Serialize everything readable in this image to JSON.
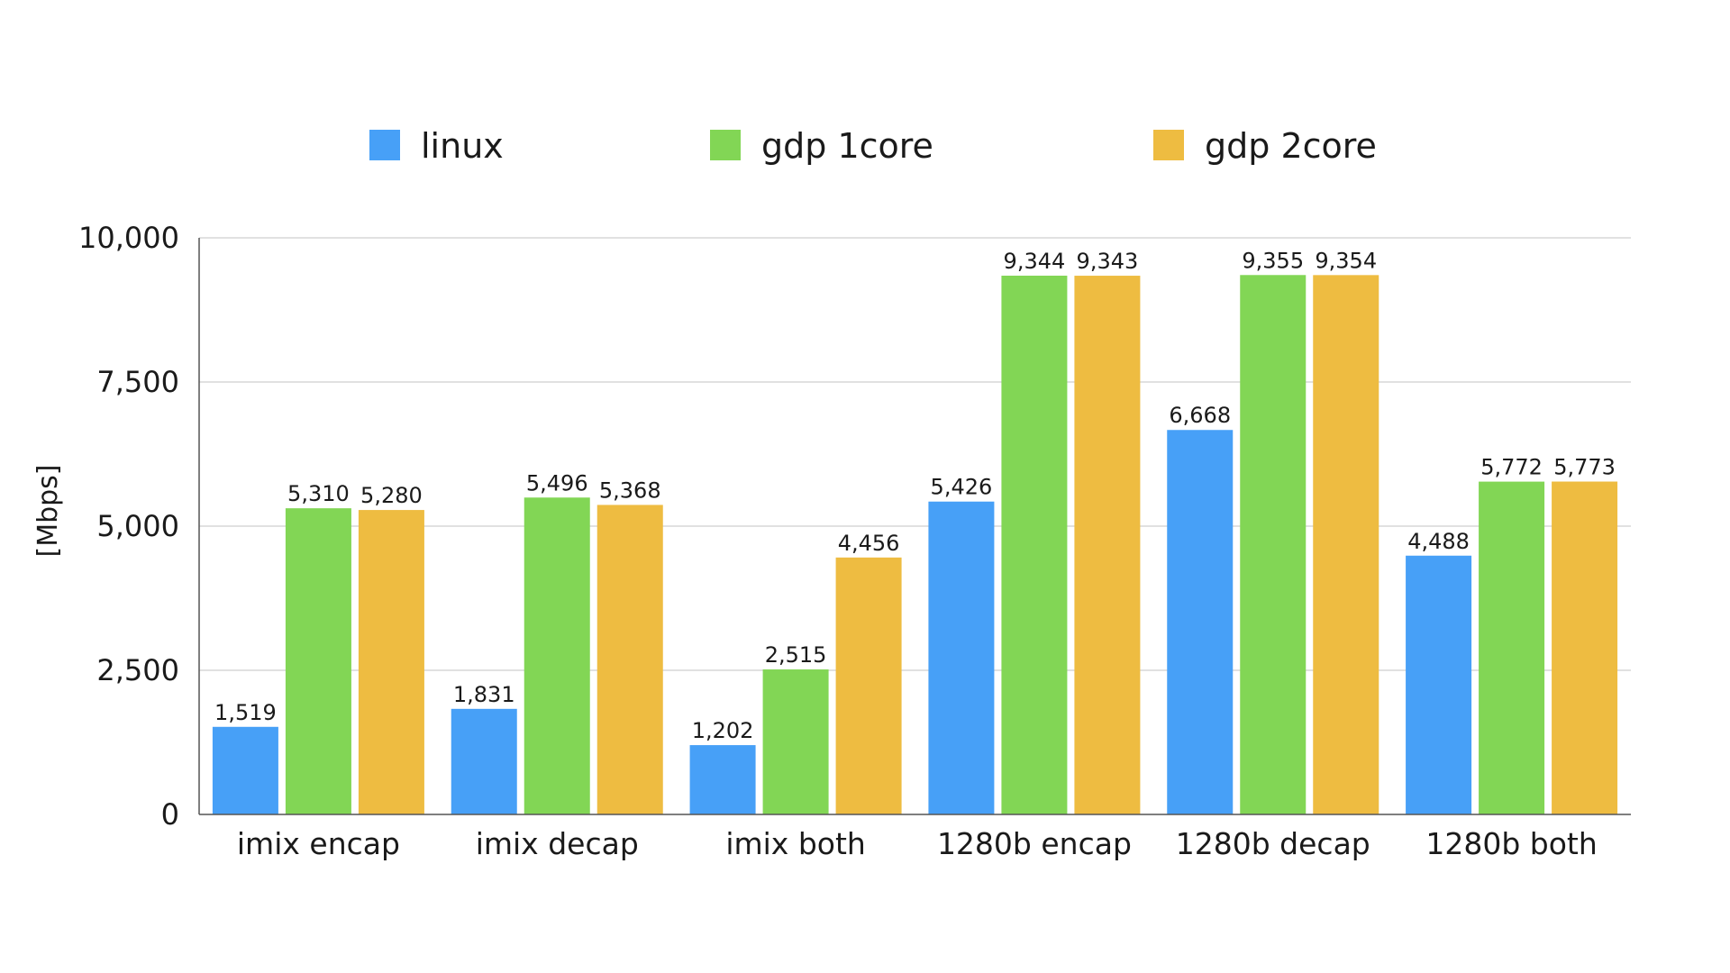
{
  "chart_data": {
    "type": "bar",
    "title": "",
    "xlabel": "",
    "ylabel": "[Mbps]",
    "ylim": [
      0,
      10000
    ],
    "yticks": [
      0,
      2500,
      5000,
      7500,
      10000
    ],
    "ytick_labels": [
      "0",
      "2,500",
      "5,000",
      "7,500",
      "10,000"
    ],
    "grid": true,
    "legend_position": "top",
    "categories": [
      "imix encap",
      "imix decap",
      "imix both",
      "1280b encap",
      "1280b decap",
      "1280b both"
    ],
    "series": [
      {
        "name": "linux",
        "color": "#47a0f7",
        "values": [
          1519,
          1831,
          1202,
          5426,
          6668,
          4488
        ],
        "labels": [
          "1,519",
          "1,831",
          "1,202",
          "5,426",
          "6,668",
          "4,488"
        ]
      },
      {
        "name": "gdp 1core",
        "color": "#82d655",
        "values": [
          5310,
          5496,
          2515,
          9344,
          9355,
          5772
        ],
        "labels": [
          "5,310",
          "5,496",
          "2,515",
          "9,344",
          "9,355",
          "5,772"
        ]
      },
      {
        "name": "gdp 2core",
        "color": "#eebc41",
        "values": [
          5280,
          5368,
          4456,
          9343,
          9354,
          5773
        ],
        "labels": [
          "5,280",
          "5,368",
          "4,456",
          "9,343",
          "9,354",
          "5,773"
        ]
      }
    ]
  }
}
